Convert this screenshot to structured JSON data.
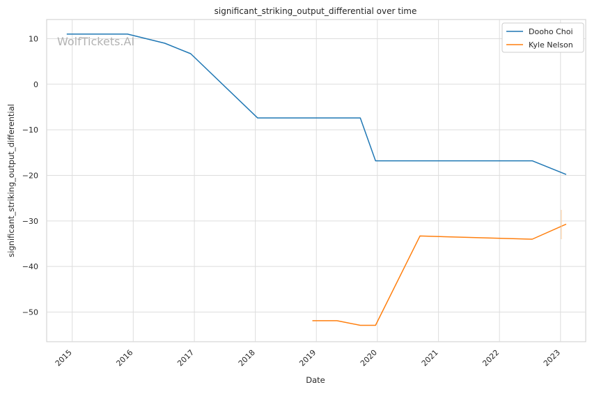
{
  "watermark": "WolfTickets.AI",
  "chart_data": {
    "type": "line",
    "title": "significant_striking_output_differential over time",
    "xlabel": "Date",
    "ylabel": "significant_striking_output_differential",
    "x_ticks": [
      "2015",
      "2016",
      "2017",
      "2018",
      "2019",
      "2020",
      "2021",
      "2022",
      "2023"
    ],
    "y_ticks": [
      "10",
      "0",
      "−10",
      "−20",
      "−30",
      "−40",
      "−50"
    ],
    "y_tick_values": [
      10,
      0,
      -10,
      -20,
      -30,
      -40,
      -50
    ],
    "xlim": [
      "2014-08-01",
      "2023-06-01"
    ],
    "ylim": [
      -56.5,
      14.2
    ],
    "grid": true,
    "legend_position": "top-right",
    "series": [
      {
        "name": "Dooho Choi",
        "color": "#1f77b4",
        "points": [
          {
            "x": "2014-11-29",
            "y": 11.0
          },
          {
            "x": "2015-11-28",
            "y": 11.0
          },
          {
            "x": "2016-07-08",
            "y": 9.0
          },
          {
            "x": "2016-12-10",
            "y": 6.7
          },
          {
            "x": "2018-01-14",
            "y": -7.4
          },
          {
            "x": "2019-09-21",
            "y": -7.4
          },
          {
            "x": "2019-12-21",
            "y": -16.8
          },
          {
            "x": "2022-07-16",
            "y": -16.8
          },
          {
            "x": "2023-02-04",
            "y": -19.8
          }
        ]
      },
      {
        "name": "Kyle Nelson",
        "color": "#ff7f0e",
        "points": [
          {
            "x": "2018-12-08",
            "y": -51.9
          },
          {
            "x": "2019-05-04",
            "y": -51.9
          },
          {
            "x": "2019-09-21",
            "y": -52.9
          },
          {
            "x": "2019-12-21",
            "y": -52.9
          },
          {
            "x": "2020-09-12",
            "y": -33.3
          },
          {
            "x": "2022-07-16",
            "y": -34.0
          },
          {
            "x": "2023-02-04",
            "y": -30.7
          }
        ]
      }
    ]
  }
}
